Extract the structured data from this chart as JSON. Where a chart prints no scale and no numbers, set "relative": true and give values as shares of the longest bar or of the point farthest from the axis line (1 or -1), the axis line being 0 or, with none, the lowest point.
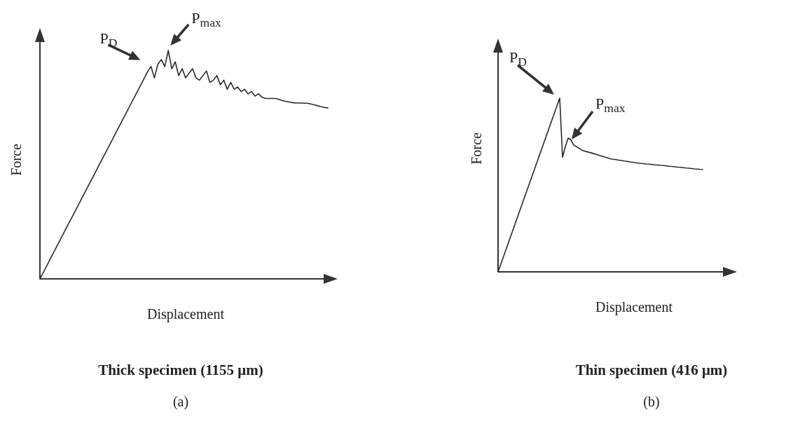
{
  "chart_data": [
    {
      "type": "line",
      "relative": true,
      "title": "Thick specimen (1155 μm)",
      "subtitle": "(a)",
      "xlabel": "Displacement",
      "ylabel": "Force",
      "annotations": [
        "P$_{D}$",
        "P$_{max}$"
      ],
      "categories": [
        null,
        null,
        null,
        null,
        null,
        null,
        null,
        null,
        null,
        null,
        null,
        null,
        null,
        null,
        null,
        null,
        null,
        null,
        null,
        null,
        null,
        null,
        null,
        null,
        null,
        null,
        null,
        null,
        null,
        null,
        null,
        null,
        null,
        null,
        null,
        null,
        null,
        null,
        null,
        null,
        null,
        null,
        null,
        null,
        null,
        null,
        null,
        null,
        null,
        null,
        null,
        null,
        null,
        null,
        null,
        null,
        null,
        null,
        null,
        null,
        null,
        null,
        null,
        null,
        null,
        null,
        null,
        null,
        null,
        null,
        null,
        null,
        null,
        null,
        null,
        null,
        null,
        null,
        null,
        null,
        null,
        null,
        null,
        null
      ],
      "series": [
        {
          "color": "#2a2a2a",
          "values": [
            0,
            0.029,
            0.058,
            0.088,
            0.117,
            0.146,
            0.175,
            0.205,
            0.234,
            0.263,
            0.292,
            0.321,
            0.351,
            0.38,
            0.409,
            0.438,
            0.467,
            0.497,
            0.526,
            0.555,
            0.584,
            0.613,
            0.643,
            0.672,
            0.701,
            0.73,
            0.76,
            0.789,
            0.818,
            0.847,
            0.876,
            0.906,
            0.93,
            0.88,
            0.94,
            0.96,
            0.93,
            1,
            0.92,
            0.95,
            0.89,
            0.92,
            0.88,
            0.9,
            0.92,
            0.88,
            0.87,
            0.89,
            0.91,
            0.86,
            0.87,
            0.89,
            0.85,
            0.87,
            0.83,
            0.86,
            0.83,
            0.84,
            0.82,
            0.83,
            0.81,
            0.82,
            0.8,
            0.81,
            0.795,
            0.79,
            0.79,
            0.79,
            0.79,
            0.785,
            0.78,
            0.777,
            0.774,
            0.771,
            0.77,
            0.77,
            0.769,
            0.769,
            0.766,
            0.762,
            0.758,
            0.754,
            0.751,
            0.748
          ]
        }
      ]
    },
    {
      "type": "line",
      "relative": true,
      "title": "Thin specimen (416 μm)",
      "subtitle": "(b)",
      "xlabel": "Displacement",
      "ylabel": "Force",
      "annotations": [
        "P$_{D}$",
        "P$_{max}$"
      ],
      "categories": [
        null,
        null,
        null,
        null,
        null,
        null,
        null,
        null,
        null,
        null,
        null,
        null,
        null,
        null,
        null,
        null,
        null,
        null,
        null,
        null,
        null,
        null,
        null,
        null,
        null,
        null,
        null,
        null,
        null,
        null,
        null,
        null,
        null,
        null,
        null,
        null,
        null,
        null,
        null,
        null,
        null,
        null,
        null,
        null,
        null,
        null,
        null,
        null,
        null,
        null,
        null,
        null,
        null,
        null,
        null,
        null,
        null,
        null,
        null,
        null,
        null,
        null,
        null,
        null,
        null,
        null,
        null,
        null,
        null,
        null,
        null,
        null,
        null,
        null
      ],
      "series": [
        {
          "color": "#2a2a2a",
          "values": [
            0,
            0.045,
            0.091,
            0.136,
            0.182,
            0.227,
            0.273,
            0.318,
            0.364,
            0.409,
            0.455,
            0.5,
            0.545,
            0.591,
            0.636,
            0.682,
            0.727,
            0.773,
            0.818,
            0.864,
            0.909,
            0.955,
            1,
            0.66,
            0.72,
            0.77,
            0.76,
            0.73,
            0.72,
            0.71,
            0.7,
            0.695,
            0.69,
            0.686,
            0.681,
            0.676,
            0.671,
            0.666,
            0.661,
            0.656,
            0.651,
            0.648,
            0.646,
            0.643,
            0.641,
            0.638,
            0.636,
            0.633,
            0.631,
            0.628,
            0.626,
            0.624,
            0.623,
            0.621,
            0.62,
            0.618,
            0.616,
            0.615,
            0.613,
            0.612,
            0.61,
            0.608,
            0.607,
            0.605,
            0.603,
            0.602,
            0.6,
            0.598,
            0.597,
            0.595,
            0.593,
            0.592,
            0.59,
            0.589
          ]
        }
      ]
    }
  ]
}
